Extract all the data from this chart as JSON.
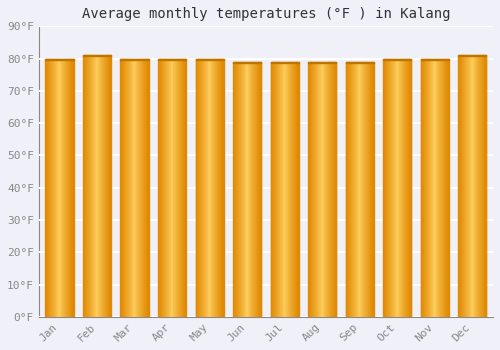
{
  "title": "Average monthly temperatures (°F ) in Kalang",
  "months": [
    "Jan",
    "Feb",
    "Mar",
    "Apr",
    "May",
    "Jun",
    "Jul",
    "Aug",
    "Sep",
    "Oct",
    "Nov",
    "Dec"
  ],
  "values": [
    80,
    81,
    80,
    80,
    80,
    79,
    79,
    79,
    79,
    80,
    80,
    81
  ],
  "bar_color_center": "#FFD060",
  "bar_color_edge": "#E08800",
  "background_color": "#F0F0F8",
  "plot_bg_color": "#F0F0F8",
  "grid_color": "#FFFFFF",
  "ylim": [
    0,
    90
  ],
  "yticks": [
    0,
    10,
    20,
    30,
    40,
    50,
    60,
    70,
    80,
    90
  ],
  "ytick_labels": [
    "0°F",
    "10°F",
    "20°F",
    "30°F",
    "40°F",
    "50°F",
    "60°F",
    "70°F",
    "80°F",
    "90°F"
  ],
  "title_fontsize": 10,
  "tick_fontsize": 8,
  "bar_width": 0.75
}
